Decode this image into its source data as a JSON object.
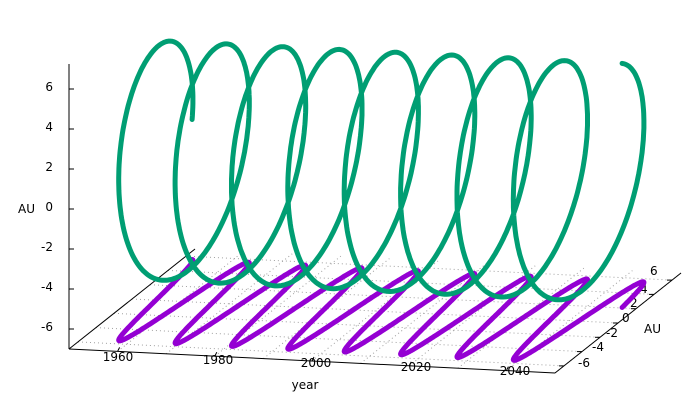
{
  "chart_data": {
    "type": "line",
    "view": "3d",
    "title": "",
    "xlabel": "year",
    "ylabel": "AU",
    "zlabel": "AU",
    "xlim": [
      1950,
      2050
    ],
    "ylim": [
      -7,
      7
    ],
    "zlim": [
      -7,
      7
    ],
    "x_ticks": [
      "1960",
      "1980",
      "2000",
      "2020",
      "2040"
    ],
    "y_ticks": [
      "6",
      "4",
      "2",
      "0",
      "-2",
      "-4",
      "-6"
    ],
    "z_ticks": [
      "6",
      "4",
      "2",
      "0",
      "-2",
      "-4",
      "-6"
    ],
    "grid": "base",
    "legend": "none",
    "series": [
      {
        "kind": "helix",
        "color": "#009e73",
        "x_start": 1952,
        "x_end": 2047,
        "period_years": 11.6,
        "radius_au": 5.6,
        "phase_deg": 0
      },
      {
        "kind": "projection-on-base",
        "color": "#9400d3",
        "x_start": 1952,
        "x_end": 2047,
        "period_years": 11.6,
        "radius_au": 5.6,
        "phase_deg": 0
      }
    ]
  }
}
